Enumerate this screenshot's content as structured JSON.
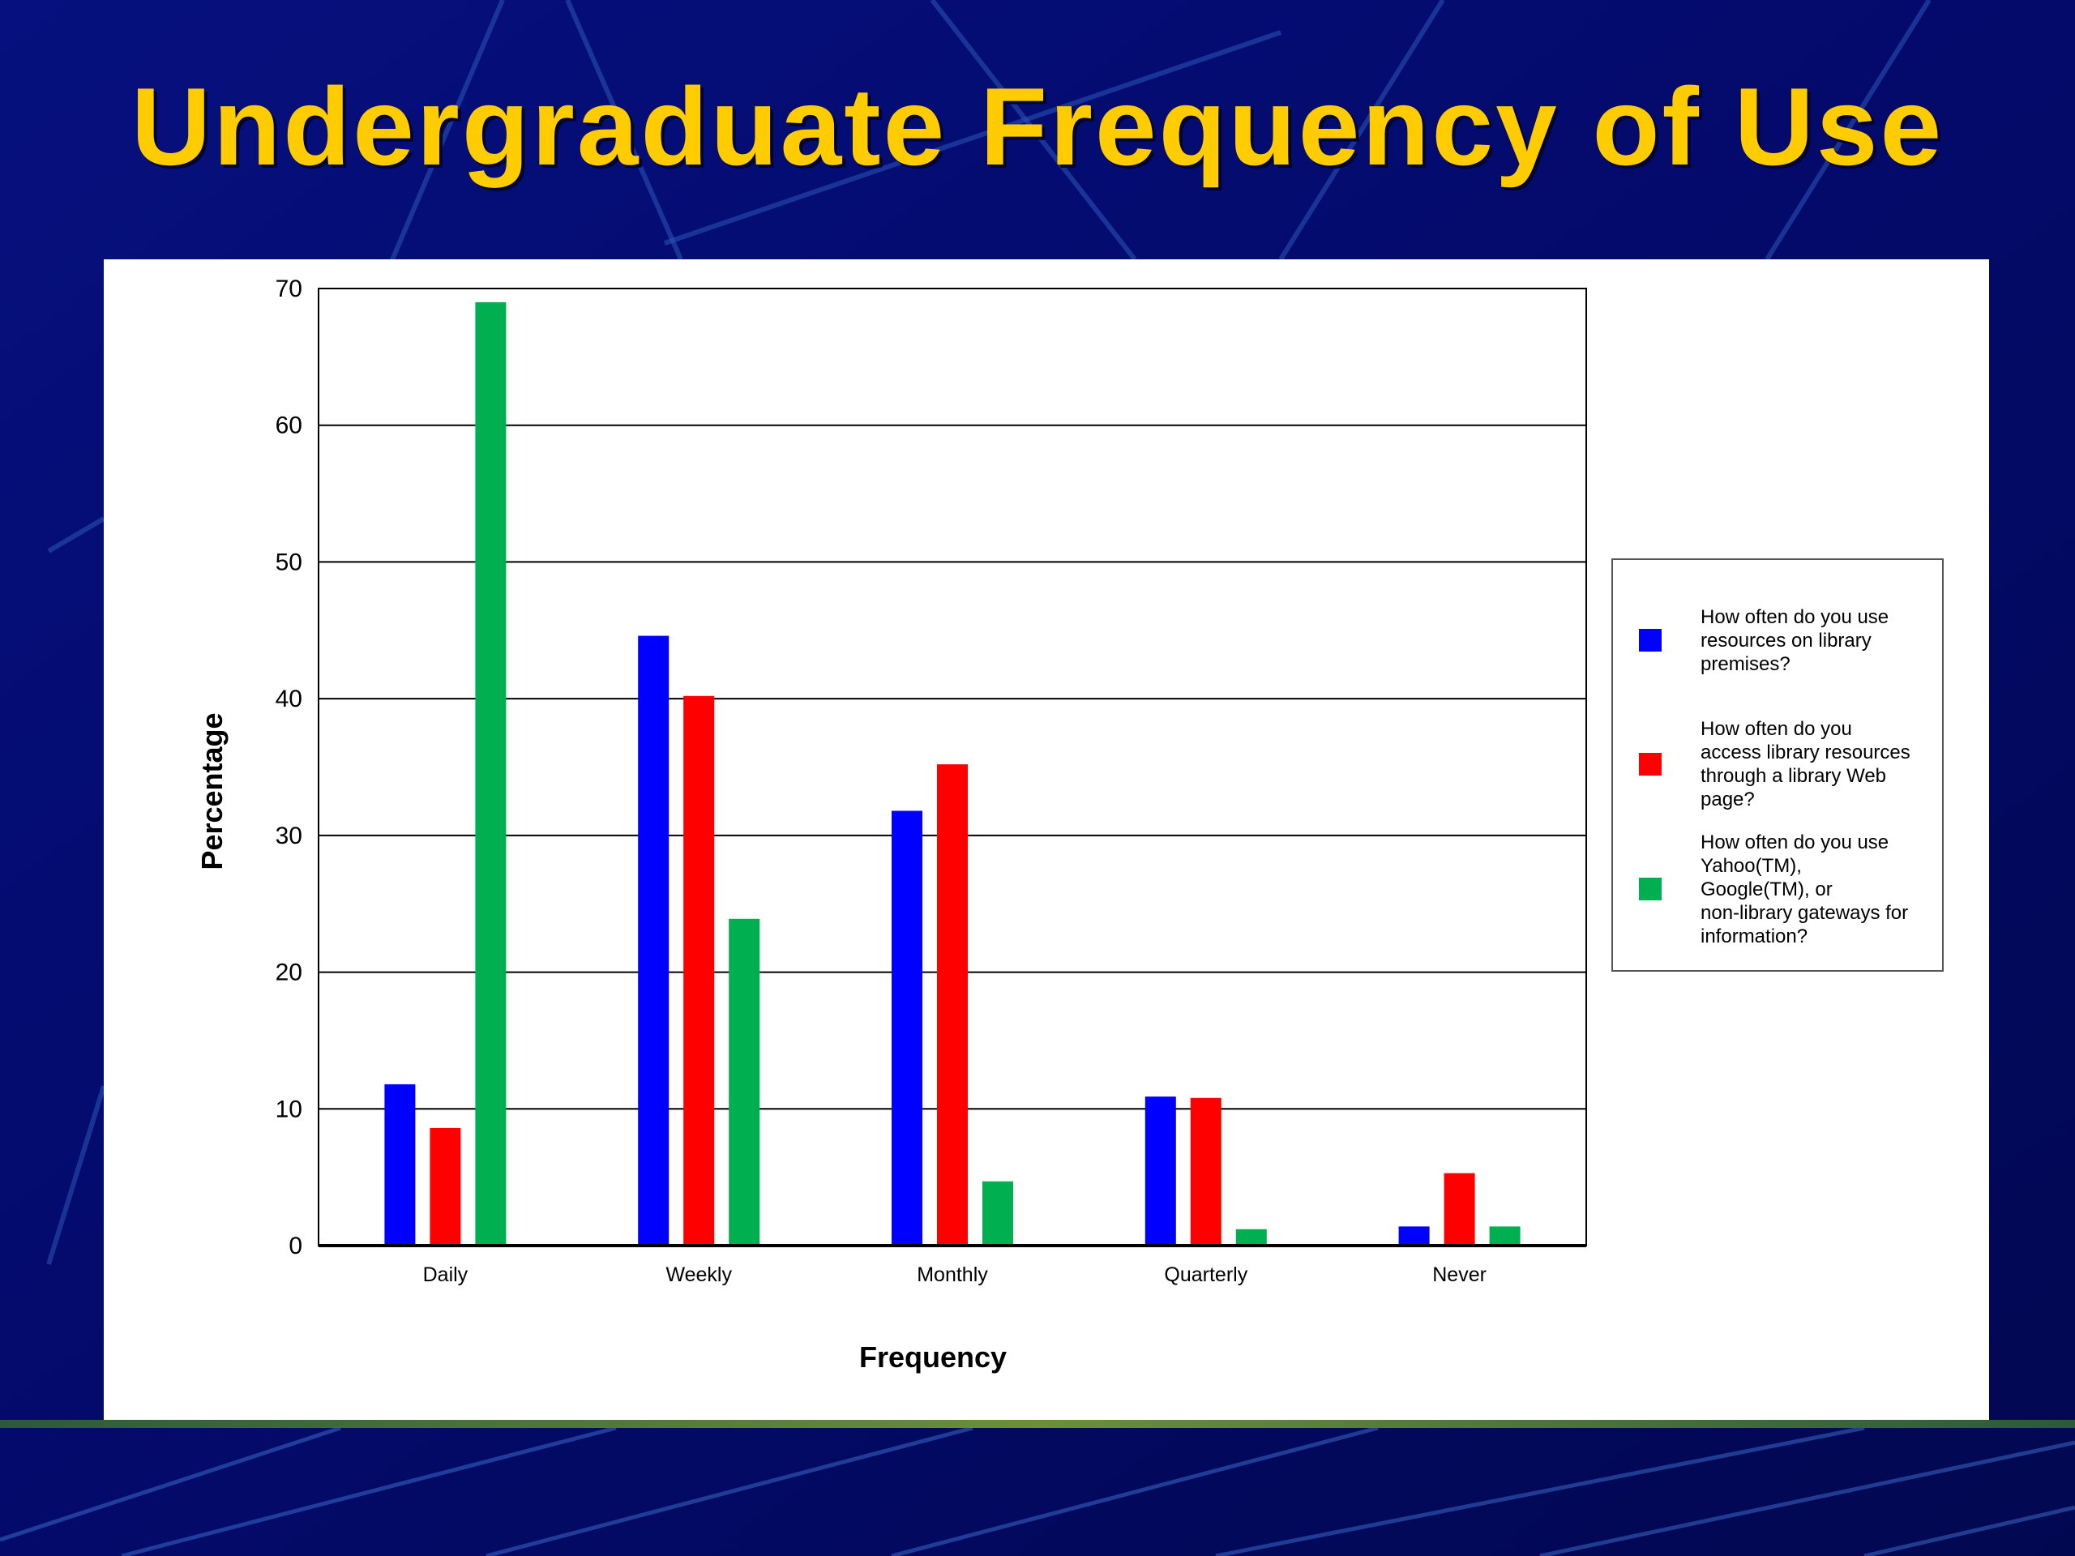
{
  "slide": {
    "title": "Undergraduate Frequency of Use",
    "background_color": "#030a6a",
    "title_color": "#ffcc00"
  },
  "chart_data": {
    "type": "bar",
    "title": "",
    "xlabel": "Frequency",
    "ylabel": "Percentage",
    "ylim": [
      0,
      70
    ],
    "yticks": [
      0,
      10,
      20,
      30,
      40,
      50,
      60,
      70
    ],
    "grid": true,
    "legend_position": "right",
    "categories": [
      "Daily",
      "Weekly",
      "Monthly",
      "Quarterly",
      "Never"
    ],
    "series": [
      {
        "name": "How often do you use resources on library premises?",
        "color": "#0000ff",
        "values": [
          11.8,
          44.6,
          31.8,
          10.9,
          1.4
        ]
      },
      {
        "name": "How often do you access library resources through a library Web page?",
        "color": "#ff0000",
        "values": [
          8.6,
          40.2,
          35.2,
          10.8,
          5.3
        ]
      },
      {
        "name": "How often do you use Yahoo(TM), Google(TM), or non-library gateways for information?",
        "color": "#00b050",
        "values": [
          69.0,
          23.9,
          4.7,
          1.2,
          1.4
        ]
      }
    ]
  },
  "legend": {
    "items": [
      {
        "lines": [
          "How often do you use",
          "resources on library",
          "premises?"
        ]
      },
      {
        "lines": [
          "How often do you",
          "access library resources",
          "through a library Web",
          "page?"
        ]
      },
      {
        "lines": [
          "How often do you use",
          "Yahoo(TM),",
          "Google(TM), or",
          "non-library gateways for",
          "information?"
        ]
      }
    ]
  }
}
